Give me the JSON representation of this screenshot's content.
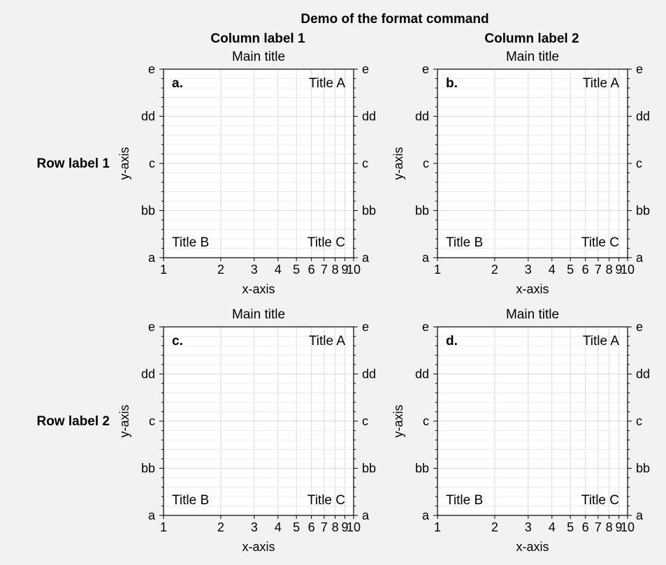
{
  "figure": {
    "suptitle": "Demo of the format command",
    "col_labels": [
      "Column label 1",
      "Column label 2"
    ],
    "row_labels": [
      "Row label 1",
      "Row label 2"
    ]
  },
  "chart_data": [
    {
      "type": "line",
      "panel_label": "a.",
      "title": "Main title",
      "corner_titles": {
        "upper_right": "Title A",
        "lower_left": "Title B",
        "lower_right": "Title C"
      },
      "xlabel": "x-axis",
      "ylabel": "y-axis",
      "xscale": "log",
      "xlim": [
        1,
        10
      ],
      "xticks": [
        1,
        2,
        3,
        4,
        5,
        6,
        7,
        8,
        9,
        10
      ],
      "xticklabels": [
        "1",
        "2",
        "3",
        "4",
        "5",
        "6",
        "7",
        "8",
        "9",
        "10"
      ],
      "ylim": [
        0,
        4
      ],
      "yticks": [
        0,
        1,
        2,
        3,
        4
      ],
      "yticklabels": [
        "a",
        "bb",
        "c",
        "dd",
        "e"
      ],
      "yminor_per_major": 5,
      "ytick_labels_both_sides": true,
      "grid": true,
      "series": []
    },
    {
      "type": "line",
      "panel_label": "b.",
      "title": "Main title",
      "corner_titles": {
        "upper_right": "Title A",
        "lower_left": "Title B",
        "lower_right": "Title C"
      },
      "xlabel": "x-axis",
      "ylabel": "y-axis",
      "xscale": "log",
      "xlim": [
        1,
        10
      ],
      "xticks": [
        1,
        2,
        3,
        4,
        5,
        6,
        7,
        8,
        9,
        10
      ],
      "xticklabels": [
        "1",
        "2",
        "3",
        "4",
        "5",
        "6",
        "7",
        "8",
        "9",
        "10"
      ],
      "ylim": [
        0,
        4
      ],
      "yticks": [
        0,
        1,
        2,
        3,
        4
      ],
      "yticklabels": [
        "a",
        "bb",
        "c",
        "dd",
        "e"
      ],
      "yminor_per_major": 5,
      "ytick_labels_both_sides": true,
      "grid": true,
      "series": []
    },
    {
      "type": "line",
      "panel_label": "c.",
      "title": "Main title",
      "corner_titles": {
        "upper_right": "Title A",
        "lower_left": "Title B",
        "lower_right": "Title C"
      },
      "xlabel": "x-axis",
      "ylabel": "y-axis",
      "xscale": "log",
      "xlim": [
        1,
        10
      ],
      "xticks": [
        1,
        2,
        3,
        4,
        5,
        6,
        7,
        8,
        9,
        10
      ],
      "xticklabels": [
        "1",
        "2",
        "3",
        "4",
        "5",
        "6",
        "7",
        "8",
        "9",
        "10"
      ],
      "ylim": [
        0,
        4
      ],
      "yticks": [
        0,
        1,
        2,
        3,
        4
      ],
      "yticklabels": [
        "a",
        "bb",
        "c",
        "dd",
        "e"
      ],
      "yminor_per_major": 5,
      "ytick_labels_both_sides": true,
      "grid": true,
      "series": []
    },
    {
      "type": "line",
      "panel_label": "d.",
      "title": "Main title",
      "corner_titles": {
        "upper_right": "Title A",
        "lower_left": "Title B",
        "lower_right": "Title C"
      },
      "xlabel": "x-axis",
      "ylabel": "y-axis",
      "xscale": "log",
      "xlim": [
        1,
        10
      ],
      "xticks": [
        1,
        2,
        3,
        4,
        5,
        6,
        7,
        8,
        9,
        10
      ],
      "xticklabels": [
        "1",
        "2",
        "3",
        "4",
        "5",
        "6",
        "7",
        "8",
        "9",
        "10"
      ],
      "ylim": [
        0,
        4
      ],
      "yticks": [
        0,
        1,
        2,
        3,
        4
      ],
      "yticklabels": [
        "a",
        "bb",
        "c",
        "dd",
        "e"
      ],
      "yminor_per_major": 5,
      "ytick_labels_both_sides": true,
      "grid": true,
      "series": []
    }
  ],
  "colors": {
    "background": "#f2f2f2",
    "axes_face": "#ffffff",
    "grid": "#d9d9d9",
    "spine": "#000000"
  }
}
